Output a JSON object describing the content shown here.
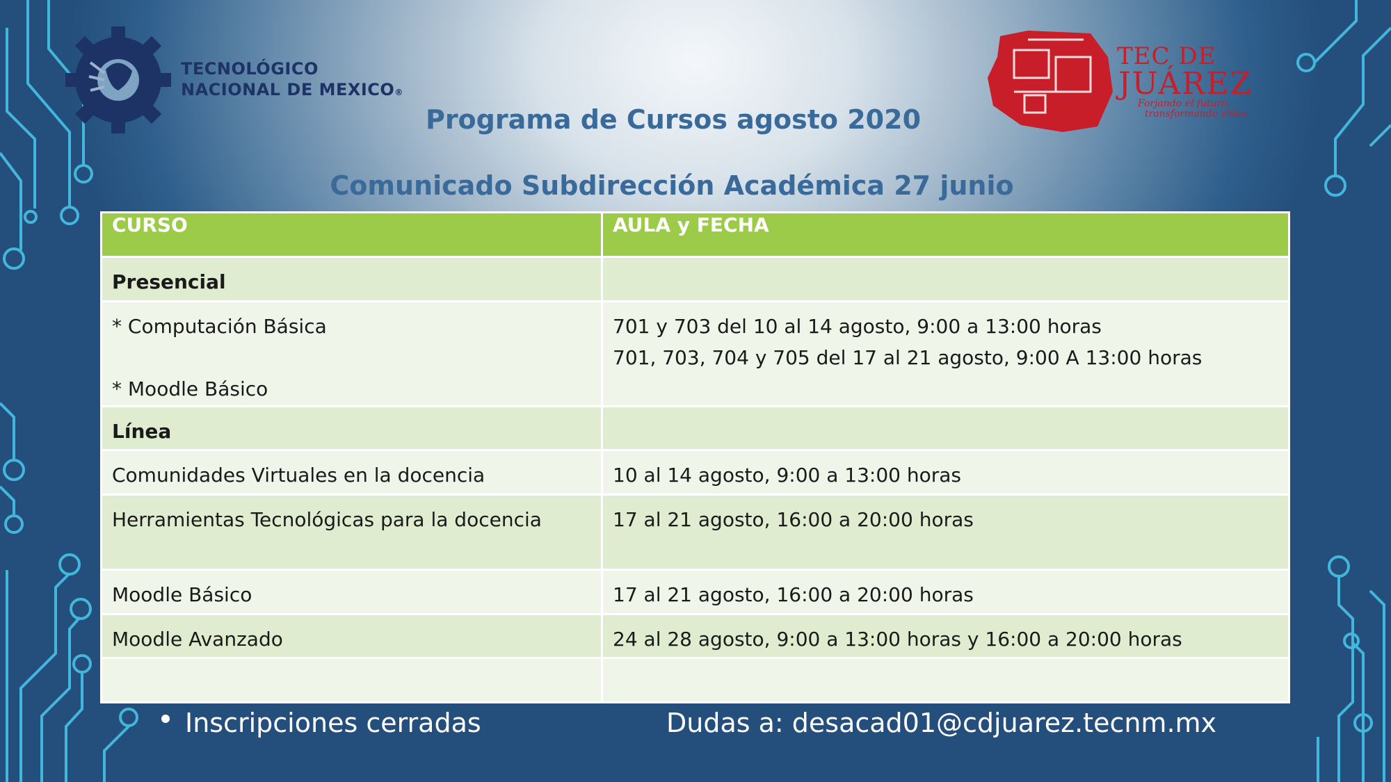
{
  "logos": {
    "tecnm": {
      "line1": "TECNOLÓGICO",
      "line2": "NACIONAL DE MEXICO",
      "mark": "®"
    },
    "juarez": {
      "line1": "TEC DE",
      "line2": "JUÁREZ",
      "tagline1": "Forjando el futuro,",
      "tagline2": "transformando vidas."
    }
  },
  "title": "Programa de Cursos agosto 2020",
  "subtitle": "Comunicado Subdirección Académica 27 junio",
  "table": {
    "headers": [
      "CURSO",
      "AULA y FECHA"
    ],
    "rows": [
      {
        "curso": "Presencial",
        "fecha": "",
        "bold": true
      },
      {
        "curso_lines": [
          "* Computación Básica",
          "",
          "* Moodle Básico"
        ],
        "fecha_lines": [
          "701 y 703 del 10 al 14 agosto, 9:00 a 13:00 horas",
          "701, 703, 704 y 705 del 17 al 21 agosto, 9:00 A 13:00 horas"
        ]
      },
      {
        "curso": "Línea",
        "fecha": "",
        "bold": true
      },
      {
        "curso": "Comunidades Virtuales en la docencia",
        "fecha": "10 al 14 agosto, 9:00 a 13:00 horas"
      },
      {
        "curso": "Herramientas Tecnológicas para la docencia",
        "fecha": "17 al 21 agosto, 16:00 a 20:00 horas"
      },
      {
        "curso": "Moodle Básico",
        "fecha": "17 al 21 agosto, 16:00 a 20:00 horas"
      },
      {
        "curso": "Moodle Avanzado",
        "fecha": "24 al 28 agosto, 9:00 a 13:00 horas y 16:00 a 20:00 horas"
      },
      {
        "curso": "",
        "fecha": ""
      }
    ]
  },
  "footer": {
    "note": "Inscripciones cerradas",
    "contact": "Dudas a: desacad01@cdjuarez.tecnm.mx"
  },
  "colors": {
    "header_green": "#9ccb4a",
    "row_dark": "#dfeccf",
    "row_light": "#eff5e8",
    "title_blue": "#3a6a99",
    "juarez_red": "#c81e2a",
    "tecnm_navy": "#1d3366"
  }
}
